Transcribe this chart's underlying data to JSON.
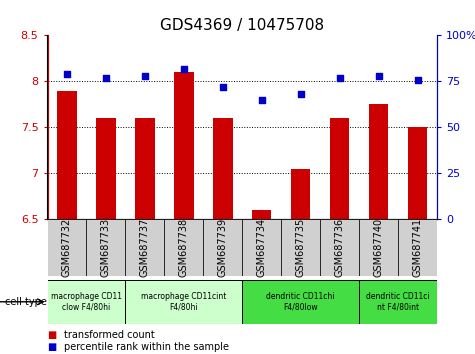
{
  "title": "GDS4369 / 10475708",
  "samples": [
    "GSM687732",
    "GSM687733",
    "GSM687737",
    "GSM687738",
    "GSM687739",
    "GSM687734",
    "GSM687735",
    "GSM687736",
    "GSM687740",
    "GSM687741"
  ],
  "transformed_count": [
    7.9,
    7.6,
    7.6,
    8.1,
    7.6,
    6.6,
    7.05,
    7.6,
    7.75,
    7.5
  ],
  "percentile_rank": [
    79,
    77,
    78,
    82,
    72,
    65,
    68,
    77,
    78,
    76
  ],
  "ylim_left": [
    6.5,
    8.5
  ],
  "ylim_right": [
    0,
    100
  ],
  "yticks_left": [
    6.5,
    7.0,
    7.5,
    8.0,
    8.5
  ],
  "yticks_right": [
    0,
    25,
    50,
    75,
    100
  ],
  "bar_color": "#cc0000",
  "dot_color": "#0000cc",
  "cell_type_groups": [
    {
      "label": "macrophage CD11\nclow F4/80hi",
      "start": 0,
      "end": 2,
      "color": "#ccffcc"
    },
    {
      "label": "macrophage CD11cint\nF4/80hi",
      "start": 2,
      "end": 5,
      "color": "#ccffcc"
    },
    {
      "label": "dendritic CD11chi\nF4/80low",
      "start": 5,
      "end": 8,
      "color": "#44dd44"
    },
    {
      "label": "dendritic CD11ci\nnt F4/80int",
      "start": 8,
      "end": 10,
      "color": "#44dd44"
    }
  ],
  "legend_bar_label": "transformed count",
  "legend_dot_label": "percentile rank within the sample",
  "title_fontsize": 11,
  "tick_fontsize": 8,
  "xtick_fontsize": 7
}
